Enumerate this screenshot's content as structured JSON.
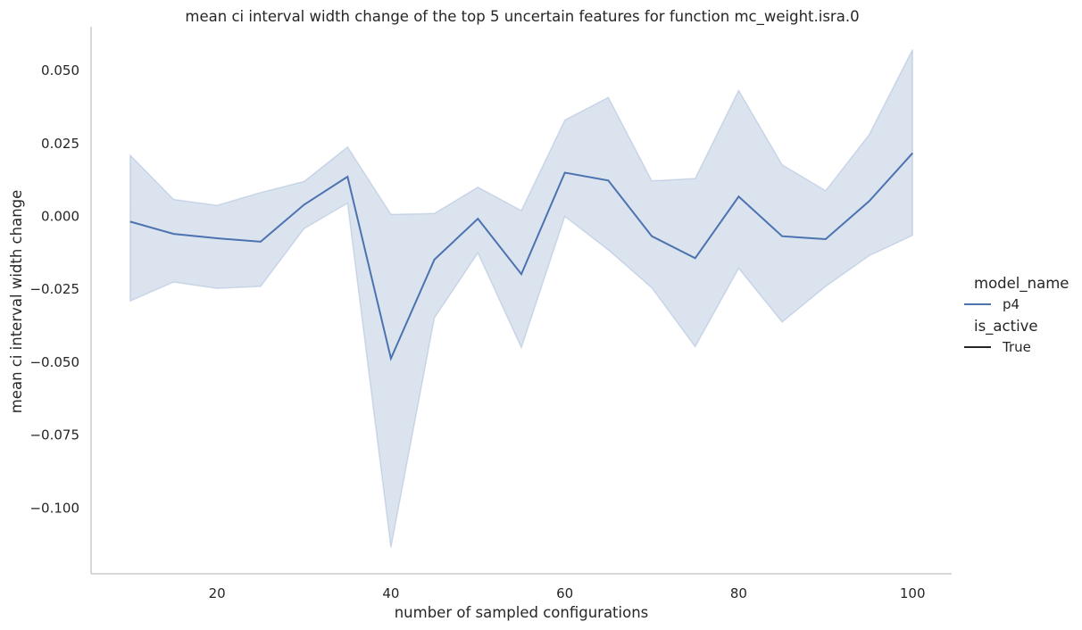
{
  "chart_data": {
    "type": "line",
    "title": "mean ci interval width change of the top 5 uncertain features for function mc_weight.isra.0",
    "xlabel": "number of sampled configurations",
    "ylabel": "mean ci interval width change",
    "xlim": [
      5.5,
      104.5
    ],
    "ylim": [
      -0.1225,
      0.065
    ],
    "xticks": [
      20,
      40,
      60,
      80,
      100
    ],
    "xtick_labels": [
      "20",
      "40",
      "60",
      "80",
      "100"
    ],
    "yticks": [
      0.05,
      0.025,
      0.0,
      -0.025,
      -0.05,
      -0.075,
      -0.1
    ],
    "ytick_labels": [
      "0.050",
      "0.025",
      "0.000",
      "−0.025",
      "−0.050",
      "−0.075",
      "−0.100"
    ],
    "grid": false,
    "legend_placement": "right",
    "x": [
      10,
      15,
      20,
      25,
      30,
      35,
      40,
      45,
      50,
      55,
      60,
      65,
      70,
      75,
      80,
      85,
      90,
      95,
      100
    ],
    "series": [
      {
        "name": "p4",
        "color": "#4c72b0",
        "values": [
          -0.0018,
          -0.006,
          -0.0075,
          -0.0087,
          0.004,
          0.0136,
          -0.0487,
          -0.0148,
          -0.0008,
          -0.0198,
          0.015,
          0.0123,
          -0.0068,
          -0.0143,
          0.0068,
          -0.0068,
          -0.0078,
          0.0052,
          0.0217
        ],
        "ci_upper": [
          0.021,
          0.0058,
          0.0038,
          0.0082,
          0.012,
          0.0238,
          0.0007,
          0.001,
          0.01,
          0.002,
          0.033,
          0.0408,
          0.0122,
          0.013,
          0.0432,
          0.0177,
          0.0088,
          0.028,
          0.0572
        ],
        "ci_lower": [
          -0.029,
          -0.0225,
          -0.0247,
          -0.024,
          -0.0042,
          0.0045,
          -0.1135,
          -0.0348,
          -0.0125,
          -0.045,
          0.0,
          -0.0115,
          -0.0245,
          -0.0447,
          -0.0178,
          -0.0362,
          -0.024,
          -0.0135,
          -0.0065
        ]
      }
    ],
    "legend": {
      "title1": "model_name",
      "item1": "p4",
      "title2": "is_active",
      "item2": "True",
      "item1_color": "#4c72b0",
      "item2_color": "#262626"
    },
    "band_color": "#4c72b0",
    "axis_color": "#cccccc"
  }
}
